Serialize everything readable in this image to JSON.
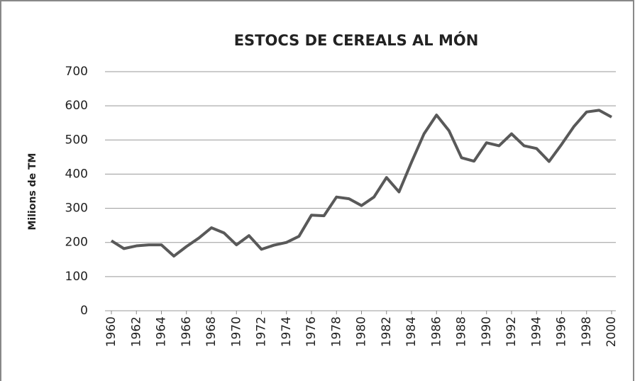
{
  "chart_data": {
    "type": "line",
    "title": "ESTOCS DE CEREALS AL MÓN",
    "y_label": "Milions de TM",
    "x": [
      1960,
      1961,
      1962,
      1963,
      1964,
      1965,
      1966,
      1967,
      1968,
      1969,
      1970,
      1971,
      1972,
      1973,
      1974,
      1975,
      1976,
      1977,
      1978,
      1979,
      1980,
      1981,
      1982,
      1983,
      1984,
      1985,
      1986,
      1987,
      1988,
      1989,
      1990,
      1991,
      1992,
      1993,
      1994,
      1995,
      1996,
      1997,
      1998,
      1999,
      2000
    ],
    "series": [
      {
        "color": "#595959",
        "values": [
          205,
          182,
          190,
          193,
          193,
          160,
          188,
          213,
          243,
          228,
          193,
          220,
          180,
          192,
          200,
          218,
          280,
          278,
          333,
          328,
          308,
          333,
          390,
          348,
          435,
          518,
          573,
          527,
          448,
          438,
          492,
          483,
          518,
          483,
          475,
          437,
          487,
          540,
          582,
          587,
          567
        ]
      }
    ],
    "xlim": [
      1960,
      2000
    ],
    "xticks": [
      1960,
      1962,
      1964,
      1966,
      1968,
      1970,
      1972,
      1974,
      1976,
      1978,
      1980,
      1982,
      1984,
      1986,
      1988,
      1990,
      1992,
      1994,
      1996,
      1998,
      2000
    ],
    "ylim": [
      0,
      700
    ],
    "yticks": [
      0,
      100,
      200,
      300,
      400,
      500,
      600,
      700
    ],
    "grid": true
  }
}
